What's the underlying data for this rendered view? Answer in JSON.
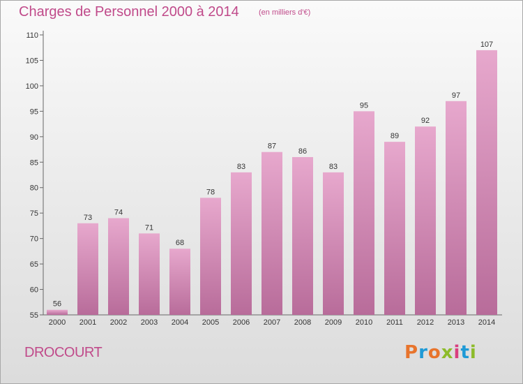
{
  "header": {
    "title": "Charges de Personnel 2000 à 2014",
    "subtitle": "(en milliers d'€)"
  },
  "footer": {
    "town": "DROCOURT",
    "logo_text": "Proxiti",
    "logo_colors": [
      "#e8742c",
      "#1f9ad6",
      "#e8742c",
      "#8dbb2a",
      "#d93f7f",
      "#1f9ad6",
      "#8dbb2a"
    ]
  },
  "colors": {
    "bar_top": "#e7a8cd",
    "bar_bottom": "#b86c9a",
    "text_accent": "#c04a8a",
    "axis": "#666666"
  },
  "chart_data": {
    "type": "bar",
    "title": "Charges de Personnel 2000 à 2014",
    "subtitle": "(en milliers d'€)",
    "categories": [
      "2000",
      "2001",
      "2002",
      "2003",
      "2004",
      "2005",
      "2006",
      "2007",
      "2008",
      "2009",
      "2010",
      "2011",
      "2012",
      "2013",
      "2014"
    ],
    "values": [
      56,
      73,
      74,
      71,
      68,
      78,
      83,
      87,
      86,
      83,
      95,
      89,
      92,
      97,
      107
    ],
    "ylim": [
      55,
      110
    ],
    "yticks": [
      55,
      60,
      65,
      70,
      75,
      80,
      85,
      90,
      95,
      100,
      105,
      110
    ],
    "grid": false,
    "xlabel": "",
    "ylabel": ""
  }
}
